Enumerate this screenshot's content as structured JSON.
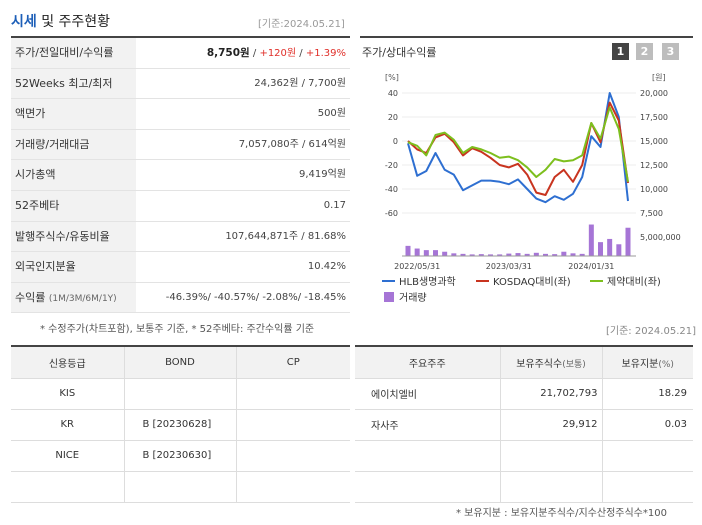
{
  "header": {
    "title_blue": "시세",
    "title_rest": " 및 주주현황",
    "date": "[기준:2024.05.21]"
  },
  "quote_table": [
    {
      "label": "주가/전일대비/수익률",
      "price": "8,750원",
      "sep1": " / ",
      "change": "+120원",
      "sep2": " / ",
      "pct": "+1.39%"
    },
    {
      "label": "52Weeks 최고/최저",
      "value": "24,362원 / 7,700원"
    },
    {
      "label": "액면가",
      "value": "500원"
    },
    {
      "label": "거래량/거래대금",
      "value": "7,057,080주 / 614억원"
    },
    {
      "label": "시가총액",
      "value": "9,419억원"
    },
    {
      "label": "52주베타",
      "value": "0.17"
    },
    {
      "label": "발행주식수/유동비율",
      "value": "107,644,871주 / 81.68%"
    },
    {
      "label": "외국인지분율",
      "value": "10.42%"
    },
    {
      "label": "수익률",
      "label_small": "(1M/3M/6M/1Y)",
      "value": "-46.39%/ -40.57%/ -2.08%/ -18.45%"
    }
  ],
  "quote_note": "* 수정주가(차트포함), 보통주 기준, * 52주베타: 주간수익률 기준",
  "chart_panel": {
    "title": "주가/상대수익률",
    "pages": [
      "1",
      "2",
      "3"
    ],
    "date": "[기준: 2024.05.21]"
  },
  "chart_data": {
    "type": "line",
    "left_axis_unit": "[%]",
    "right_axis_unit": "[원]",
    "left_ticks": [
      "40",
      "20",
      "0",
      "-20",
      "-40",
      "-60"
    ],
    "right_ticks": [
      "20,000",
      "17,500",
      "15,000",
      "12,500",
      "10,000",
      "7,500"
    ],
    "volume_tick": "5,000,000",
    "x_labels": [
      "2022/05/31",
      "2023/03/31",
      "2024/01/31"
    ],
    "left_range": [
      -60,
      40
    ],
    "right_range": [
      7500,
      20000
    ],
    "series": [
      {
        "name": "HLB생명과학",
        "color": "#2e6fd1",
        "axis": "left",
        "values": [
          -2,
          -29,
          -25,
          -10,
          -24,
          -28,
          -41,
          -37,
          -33,
          -33,
          -34,
          -36,
          -32,
          -40,
          -48,
          -51,
          -46,
          -49,
          -44,
          -30,
          4,
          -5,
          40,
          20,
          -50
        ]
      },
      {
        "name": "KOSDAQ대비(좌)",
        "color": "#c8341f",
        "axis": "left",
        "values": [
          0,
          -7,
          -10,
          3,
          6,
          -1,
          -12,
          -6,
          -9,
          -14,
          -20,
          -22,
          -19,
          -28,
          -43,
          -45,
          -30,
          -24,
          -34,
          -20,
          15,
          -1,
          32,
          17,
          -35
        ]
      },
      {
        "name": "제약대비(좌)",
        "color": "#7dbf1e",
        "axis": "left",
        "values": [
          -1,
          -4,
          -12,
          5,
          7,
          1,
          -10,
          -5,
          -7,
          -10,
          -14,
          -13,
          -16,
          -22,
          -30,
          -24,
          -15,
          -17,
          -16,
          -12,
          15,
          2,
          28,
          10,
          -34
        ]
      }
    ],
    "volume": {
      "name": "거래량",
      "color": "#a675d6",
      "values": [
        1.9,
        1.4,
        1.1,
        1.1,
        0.8,
        0.5,
        0.4,
        0.3,
        0.35,
        0.3,
        0.3,
        0.45,
        0.55,
        0.4,
        0.6,
        0.4,
        0.35,
        0.8,
        0.5,
        0.4,
        5.9,
        2.6,
        3.2,
        2.2,
        5.3
      ]
    }
  },
  "credit_table": {
    "headers": [
      "신용등급",
      "BOND",
      "CP"
    ],
    "rows": [
      [
        "KIS",
        "",
        ""
      ],
      [
        "KR",
        "B   [20230628]",
        ""
      ],
      [
        "NICE",
        "B   [20230630]",
        ""
      ],
      [
        "",
        "",
        ""
      ]
    ]
  },
  "holder_table": {
    "headers": [
      "주요주주",
      "보유주식수",
      "(보통)",
      "보유지분",
      "(%)"
    ],
    "rows": [
      [
        "에이치엘비",
        "21,702,793",
        "18.29"
      ],
      [
        "자사주",
        "29,912",
        "0.03"
      ],
      [
        "",
        "",
        ""
      ],
      [
        "",
        "",
        ""
      ]
    ],
    "note": "* 보유지분 : 보유지분주식수/지수산정주식수*100"
  }
}
